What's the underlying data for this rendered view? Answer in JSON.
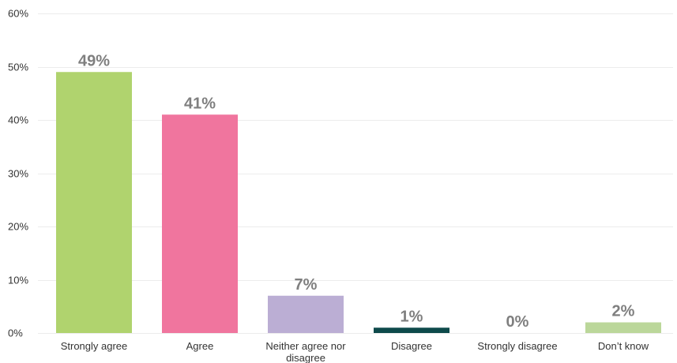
{
  "chart_data": {
    "type": "bar",
    "categories": [
      "Strongly agree",
      "Agree",
      "Neither agree nor disagree",
      "Disagree",
      "Strongly disagree",
      "Don't know"
    ],
    "category_lines": [
      [
        "Strongly agree"
      ],
      [
        "Agree"
      ],
      [
        "Neither agree nor",
        "disagree"
      ],
      [
        "Disagree"
      ],
      [
        "Strongly disagree"
      ],
      [
        "Don’t know"
      ]
    ],
    "values": [
      49,
      41,
      7,
      1,
      0,
      2
    ],
    "data_labels": [
      "49%",
      "41%",
      "7%",
      "1%",
      "0%",
      "2%"
    ],
    "colors": [
      "#b0d36e",
      "#f0759e",
      "#bbaed4",
      "#0e4a4b",
      "#c9c9c9",
      "#bbd79a"
    ],
    "ylim": [
      0,
      60
    ],
    "yticks": [
      0,
      10,
      20,
      30,
      40,
      50,
      60
    ],
    "ytick_labels": [
      "0%",
      "10%",
      "20%",
      "30%",
      "40%",
      "50%",
      "60%"
    ],
    "grid": true,
    "legend": "none"
  }
}
